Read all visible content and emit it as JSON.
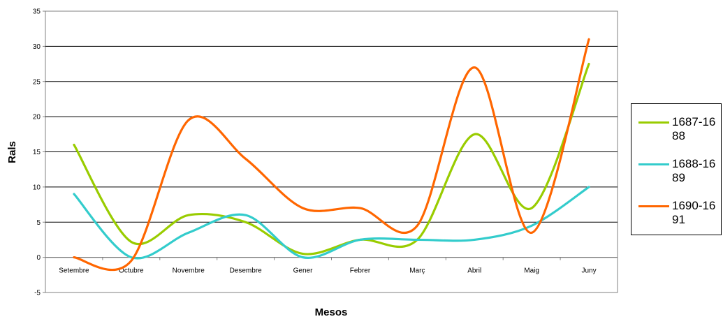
{
  "chart_data": {
    "type": "line",
    "xlabel": "Mesos",
    "ylabel": "Rals",
    "ylim": [
      -5,
      35
    ],
    "yticks": [
      -5,
      0,
      5,
      10,
      15,
      20,
      25,
      30,
      35
    ],
    "grid": "horizontal",
    "legend_position": "right",
    "categories": [
      "Setembre",
      "Octubre",
      "Novembre",
      "Desembre",
      "Gener",
      "Febrer",
      "Març",
      "Abril",
      "Maig",
      "Juny"
    ],
    "series": [
      {
        "name": "1687-1688",
        "color": "#99cc00",
        "values": [
          16,
          2.2,
          6,
          5,
          0.5,
          2.5,
          2.5,
          17.5,
          7,
          27.5
        ]
      },
      {
        "name": "1688-1689",
        "color": "#33cccc",
        "values": [
          9,
          0,
          3.5,
          6,
          0,
          2.5,
          2.5,
          2.5,
          4.5,
          10
        ]
      },
      {
        "name": "1690-1691",
        "color": "#ff6600",
        "values": [
          0,
          -0.5,
          19.5,
          14,
          7,
          7,
          4.5,
          27,
          3.5,
          31
        ]
      }
    ]
  }
}
